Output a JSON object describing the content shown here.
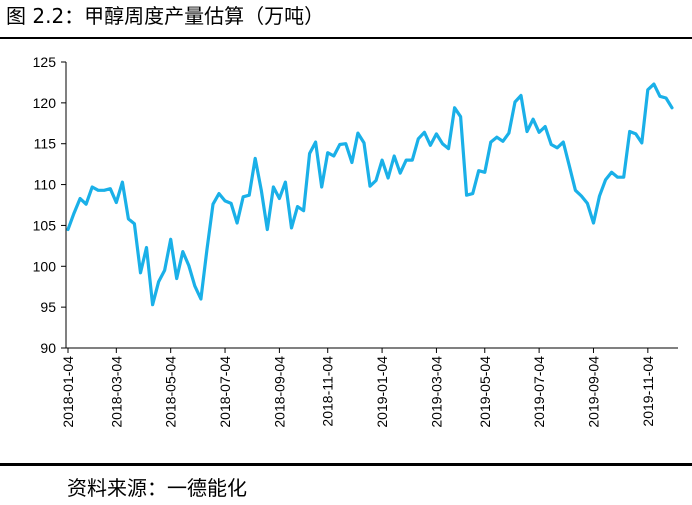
{
  "header": {
    "title": "图 2.2：甲醇周度产量估算（万吨）"
  },
  "footer": {
    "source": "资料来源：一德能化"
  },
  "chart_data": {
    "type": "line",
    "title": "图 2.2：甲醇周度产量估算（万吨）",
    "xlabel": "",
    "ylabel": "",
    "ylim": [
      90,
      125
    ],
    "yticks": [
      90,
      95,
      100,
      105,
      110,
      115,
      120,
      125
    ],
    "grid": false,
    "legend": "none",
    "line_color": "#1AB0E8",
    "x_tick_labels": [
      "2018-01-04",
      "2018-03-04",
      "2018-05-04",
      "2018-07-04",
      "2018-09-04",
      "2018-11-04",
      "2019-01-04",
      "2019-03-04",
      "2019-05-04",
      "2019-07-04",
      "2019-09-04",
      "2019-11-04"
    ],
    "x_tick_week_index": [
      0,
      8,
      17,
      26,
      35,
      43,
      52,
      61,
      69,
      78,
      87,
      96
    ],
    "series": [
      {
        "values": [
          104.5,
          106.5,
          108.3,
          107.6,
          109.7,
          109.3,
          109.3,
          109.5,
          107.8,
          110.3,
          105.8,
          105.2,
          99.2,
          102.3,
          95.3,
          98.1,
          99.5,
          103.3,
          98.5,
          101.8,
          100.1,
          97.6,
          96.0,
          102.0,
          107.6,
          108.9,
          108.0,
          107.7,
          105.3,
          108.5,
          108.7,
          113.2,
          109.3,
          104.5,
          109.7,
          108.3,
          110.3,
          104.7,
          107.3,
          106.8,
          113.8,
          115.2,
          109.7,
          113.9,
          113.5,
          114.9,
          115.0,
          112.7,
          116.3,
          115.1,
          109.8,
          110.5,
          113.0,
          110.8,
          113.5,
          111.4,
          113.0,
          113.0,
          115.6,
          116.4,
          114.8,
          116.2,
          115.0,
          114.4,
          119.4,
          118.3,
          108.7,
          108.9,
          111.7,
          111.5,
          115.2,
          115.8,
          115.3,
          116.3,
          120.1,
          120.9,
          116.5,
          118.0,
          116.4,
          117.1,
          114.9,
          114.5,
          115.2,
          112.3,
          109.3,
          108.6,
          107.7,
          105.3,
          108.6,
          110.6,
          111.5,
          110.9,
          110.9,
          116.5,
          116.2,
          115.1,
          121.6,
          122.3,
          120.8,
          120.6,
          119.4
        ]
      }
    ]
  }
}
